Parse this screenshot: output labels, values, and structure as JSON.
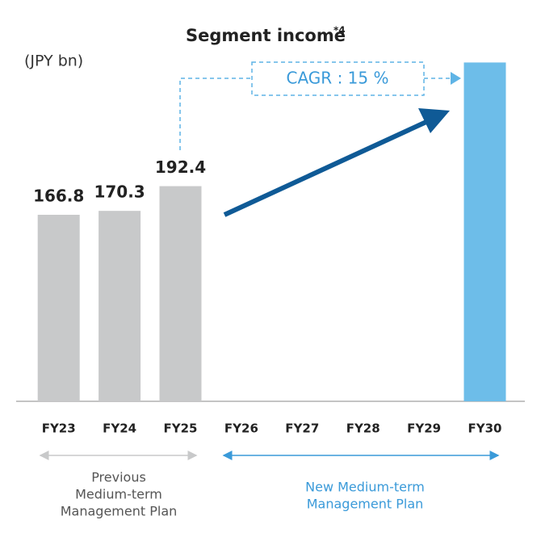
{
  "chart_data": {
    "type": "bar",
    "title": "Segment income",
    "title_note": "*4",
    "unit_label": "(JPY bn)",
    "categories": [
      "FY23",
      "FY24",
      "FY25",
      "FY26",
      "FY27",
      "FY28",
      "FY29",
      "FY30"
    ],
    "values": [
      166.8,
      170.3,
      192.4,
      null,
      null,
      null,
      null,
      303
    ],
    "value_labels": [
      "166.8",
      "170.3",
      "192.4",
      null,
      null,
      null,
      null,
      null
    ],
    "colors": [
      "#c8c9ca",
      "#c8c9ca",
      "#c8c9ca",
      "#6dbde9",
      "#6dbde9",
      "#6dbde9",
      "#6dbde9",
      "#6dbde9"
    ],
    "ylim": [
      0,
      330
    ],
    "annotation": "CAGR : 15 %",
    "periods": [
      {
        "lines": [
          "Previous",
          "Medium-term",
          "Management Plan"
        ],
        "color": "#555555"
      },
      {
        "lines": [
          "New Medium-term",
          "Management Plan"
        ],
        "color": "#3a9ad9"
      }
    ]
  }
}
